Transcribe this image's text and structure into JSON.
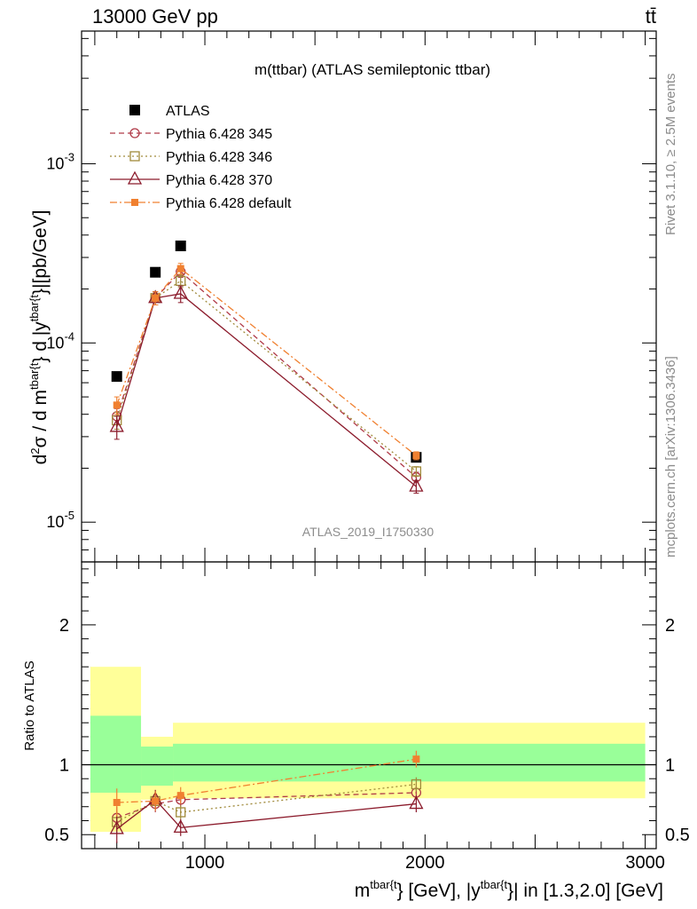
{
  "header": {
    "left": "13000 GeV pp",
    "right": "tt̄"
  },
  "side_labels": {
    "rivet": "Rivet 3.1.10, ≥ 2.5M events",
    "mcplots": "mcplots.cern.ch [arXiv:1306.3436]"
  },
  "chart_data": [
    {
      "type": "line",
      "panel": "main",
      "title": "m(ttbar) (ATLAS semileptonic ttbar)",
      "watermark": "ATLAS_2019_I1750330",
      "ylabel": "d²σ / d m^{tbar{t}} d |y^{tbar{t}}|[pb/GeV]",
      "yscale": "log",
      "xlim": [
        440,
        3050
      ],
      "ylim": [
        6e-06,
        0.0055
      ],
      "y_tick_labels": [
        "10^-5",
        "10^-4",
        "10^-3"
      ],
      "legend_position": "top-left",
      "series": [
        {
          "name": "ATLAS",
          "marker": "filled-square",
          "color": "#000000",
          "x": [
            600,
            775,
            890,
            1960
          ],
          "y": [
            6.5e-05,
            0.000248,
            0.000348,
            2.3e-05
          ]
        },
        {
          "name": "Pythia 6.428 345",
          "marker": "open-circle",
          "line": "dashed",
          "color": "#b03a48",
          "x": [
            600,
            775,
            890,
            1960
          ],
          "y": [
            3.9e-05,
            0.000178,
            0.00025,
            1.78e-05
          ],
          "err": [
            4e-06,
            1.5e-05,
            1.8e-05,
            1.2e-06
          ]
        },
        {
          "name": "Pythia 6.428 346",
          "marker": "open-square",
          "line": "dotted",
          "color": "#a08a3a",
          "x": [
            600,
            775,
            890,
            1960
          ],
          "y": [
            3.7e-05,
            0.000178,
            0.000222,
            1.92e-05
          ],
          "err": [
            4e-06,
            1.5e-05,
            1.8e-05,
            1.2e-06
          ]
        },
        {
          "name": "Pythia 6.428 370",
          "marker": "open-triangle",
          "line": "solid",
          "color": "#8b1a2b",
          "x": [
            600,
            775,
            890,
            1960
          ],
          "y": [
            3.4e-05,
            0.000178,
            0.000188,
            1.58e-05
          ],
          "err": [
            5e-06,
            1.5e-05,
            2e-05,
            1.3e-06
          ]
        },
        {
          "name": "Pythia 6.428 default",
          "marker": "filled-small-square",
          "line": "dash-dot",
          "color": "#f08030",
          "x": [
            600,
            775,
            890,
            1960
          ],
          "y": [
            4.5e-05,
            0.000178,
            0.00026,
            2.35e-05
          ],
          "err": [
            5e-06,
            1.5e-05,
            1.8e-05,
            1.2e-06
          ]
        }
      ]
    },
    {
      "type": "line",
      "panel": "ratio",
      "ylabel": "Ratio to ATLAS",
      "xlabel": "m^{tbar{t}} [GeV], |y^{tbar{t}}| in [1.3,2.0] [GeV]",
      "xlim": [
        440,
        3050
      ],
      "ylim": [
        0.4,
        2.45
      ],
      "x_tick_labels": [
        "1000",
        "2000",
        "3000"
      ],
      "y_tick_labels": [
        "0.5",
        "1",
        "2"
      ],
      "bands": {
        "bins": [
          [
            480,
            710
          ],
          [
            710,
            855
          ],
          [
            855,
            3000
          ]
        ],
        "inner": [
          [
            0.8,
            1.35
          ],
          [
            0.85,
            1.13
          ],
          [
            0.88,
            1.15
          ]
        ],
        "outer": [
          [
            0.52,
            1.7
          ],
          [
            0.75,
            1.2
          ],
          [
            0.76,
            1.3
          ]
        ],
        "inner_color": "#99ff99",
        "outer_color": "#ffff99"
      },
      "series": [
        {
          "name": "Pythia 6.428 345",
          "x": [
            600,
            775,
            890,
            1960
          ],
          "y": [
            0.62,
            0.72,
            0.75,
            0.8
          ],
          "err": [
            0.08,
            0.06,
            0.05,
            0.05
          ]
        },
        {
          "name": "Pythia 6.428 346",
          "x": [
            600,
            775,
            890,
            1960
          ],
          "y": [
            0.59,
            0.74,
            0.66,
            0.86
          ],
          "err": [
            0.08,
            0.06,
            0.05,
            0.05
          ]
        },
        {
          "name": "Pythia 6.428 370",
          "x": [
            600,
            775,
            890,
            1960
          ],
          "y": [
            0.54,
            0.75,
            0.55,
            0.72
          ],
          "err": [
            0.1,
            0.07,
            0.06,
            0.06
          ]
        },
        {
          "name": "Pythia 6.428 default",
          "x": [
            600,
            775,
            890,
            1960
          ],
          "y": [
            0.73,
            0.74,
            0.78,
            1.04
          ],
          "err": [
            0.1,
            0.07,
            0.06,
            0.06
          ]
        }
      ]
    }
  ]
}
